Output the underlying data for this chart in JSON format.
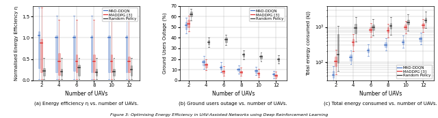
{
  "x_ticks": [
    2,
    4,
    6,
    8,
    10,
    12
  ],
  "subplot_a": {
    "ylabel": "Normalised Energy Efficiency η",
    "xlabel": "Number of UAVs",
    "caption": "(a) Energy efficiency η vs. number of UAVs.",
    "ylim": [
      0,
      1.75
    ],
    "yticks": [
      0,
      0.5,
      1.0,
      1.5
    ],
    "mad_ddon": {
      "medians": [
        1.05,
        1.0,
        1.0,
        1.0,
        1.0,
        1.0
      ],
      "q1": [
        0.28,
        0.18,
        0.22,
        0.18,
        0.18,
        0.18
      ],
      "q3": [
        1.15,
        1.05,
        1.05,
        1.05,
        1.05,
        1.05
      ],
      "whisk_lo": [
        0.02,
        0.02,
        0.02,
        0.02,
        0.02,
        0.02
      ],
      "whisk_hi": [
        1.72,
        1.52,
        1.52,
        1.52,
        1.52,
        1.52
      ]
    },
    "maddpg": {
      "medians": [
        0.87,
        0.45,
        0.45,
        0.45,
        0.45,
        0.45
      ],
      "q1": [
        0.18,
        0.12,
        0.18,
        0.18,
        0.18,
        0.18
      ],
      "q3": [
        0.97,
        0.63,
        0.6,
        0.6,
        0.6,
        0.55
      ],
      "whisk_lo": [
        0.02,
        0.02,
        0.02,
        0.02,
        0.02,
        0.02
      ],
      "whisk_hi": [
        1.72,
        1.42,
        1.42,
        1.42,
        1.42,
        1.42
      ]
    },
    "random": {
      "medians": [
        0.22,
        0.2,
        0.3,
        0.18,
        0.2,
        0.25
      ],
      "q1": [
        0.1,
        0.1,
        0.1,
        0.1,
        0.1,
        0.1
      ],
      "q3": [
        0.28,
        0.27,
        0.37,
        0.27,
        0.27,
        0.34
      ],
      "whisk_lo": [
        0.02,
        0.02,
        0.02,
        0.02,
        0.02,
        0.02
      ],
      "whisk_hi": [
        0.52,
        0.52,
        0.52,
        0.52,
        0.52,
        0.52
      ]
    }
  },
  "subplot_b": {
    "ylabel": "Ground Users Outage (%)",
    "xlabel": "Number of UAVs",
    "caption": "(b) Ground users outage vs. number of UAVs.",
    "ylim": [
      0,
      70
    ],
    "yticks": [
      0,
      10,
      20,
      30,
      40,
      50,
      60,
      70
    ],
    "mad_ddon": {
      "medians": [
        51.5,
        17.0,
        12.0,
        10.0,
        8.5,
        5.5
      ],
      "q1": [
        48.0,
        14.0,
        10.0,
        8.5,
        7.0,
        4.0
      ],
      "q3": [
        55.0,
        19.0,
        14.0,
        11.5,
        10.0,
        7.0
      ],
      "whisk_lo": [
        44.0,
        11.0,
        7.5,
        6.0,
        5.0,
        2.0
      ],
      "whisk_hi": [
        59.0,
        23.0,
        17.0,
        14.0,
        12.5,
        9.0
      ]
    },
    "maddpg": {
      "medians": [
        53.0,
        14.5,
        8.0,
        7.5,
        6.0,
        4.5
      ],
      "q1": [
        50.0,
        12.0,
        6.5,
        6.0,
        4.5,
        3.0
      ],
      "q3": [
        57.0,
        16.0,
        9.5,
        9.0,
        7.5,
        5.5
      ],
      "whisk_lo": [
        46.0,
        9.5,
        4.5,
        4.0,
        3.0,
        1.5
      ],
      "whisk_hi": [
        61.0,
        20.0,
        13.0,
        12.0,
        10.5,
        8.0
      ]
    },
    "random": {
      "medians": [
        62.0,
        36.0,
        38.0,
        24.0,
        22.0,
        19.5
      ],
      "q1": [
        60.0,
        34.0,
        36.0,
        22.0,
        20.5,
        18.0
      ],
      "q3": [
        64.5,
        37.5,
        40.0,
        25.5,
        23.5,
        21.0
      ],
      "whisk_lo": [
        56.0,
        31.0,
        33.0,
        19.5,
        18.0,
        16.0
      ],
      "whisk_hi": [
        67.5,
        40.5,
        43.0,
        28.0,
        26.0,
        23.5
      ]
    }
  },
  "subplot_c": {
    "ylabel": "Total energy consumed (kJ)",
    "xlabel": "Number of UAVs",
    "caption": "(c) Total energy consumed vs. number of UAVs.",
    "ylim_log": [
      30,
      4000
    ],
    "mad_ddon": {
      "medians": [
        42,
        135,
        210,
        310,
        370,
        450
      ],
      "q1": [
        35,
        110,
        185,
        270,
        320,
        390
      ],
      "q3": [
        55,
        165,
        245,
        370,
        430,
        530
      ],
      "whisk_lo": [
        25,
        85,
        150,
        210,
        260,
        320
      ],
      "whisk_hi": [
        75,
        210,
        320,
        480,
        570,
        680
      ]
    },
    "maddpg": {
      "medians": [
        105,
        370,
        820,
        800,
        980,
        1100
      ],
      "q1": [
        75,
        295,
        700,
        680,
        850,
        950
      ],
      "q3": [
        145,
        450,
        980,
        970,
        1150,
        1300
      ],
      "whisk_lo": [
        45,
        200,
        520,
        510,
        650,
        720
      ],
      "whisk_hi": [
        220,
        620,
        1300,
        1250,
        1450,
        1650
      ]
    },
    "random": {
      "medians": [
        165,
        950,
        960,
        1050,
        1350,
        1550
      ],
      "q1": [
        95,
        640,
        820,
        900,
        1150,
        1350
      ],
      "q3": [
        620,
        1250,
        1150,
        1280,
        1600,
        1850
      ],
      "whisk_lo": [
        55,
        380,
        560,
        600,
        800,
        950
      ],
      "whisk_hi": [
        1050,
        1900,
        1700,
        1950,
        2300,
        2700
      ]
    }
  },
  "colors": {
    "mad_ddon": "#4472c4",
    "maddpg": "#e03030",
    "random": "#333333"
  },
  "legend_labels": [
    "MAD-DDQN",
    "MADDPG [3]",
    "Random Policy"
  ],
  "figure_caption": "Figure 3: Optimising Energy Efficiency in UAV-Assisted Networks using Deep Reinforcement Learning"
}
